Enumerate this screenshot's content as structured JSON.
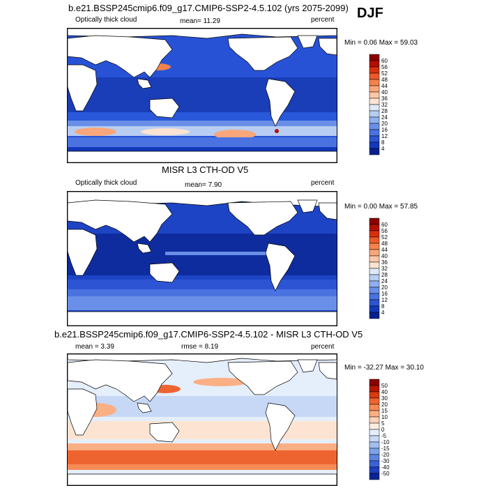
{
  "season": "DJF",
  "panels": [
    {
      "id": "model",
      "title": "b.e21.BSSP245cmip6.f09_g17.CMIP6-SSP2-4.5.102 (yrs 2075-2099)",
      "left_label": "Optically thick cloud",
      "center_label": "mean=  11.29",
      "right_label": "percent",
      "minmax": "Min =   0.06 Max =  59.03",
      "colorbar": {
        "labels": [
          "60",
          "56",
          "52",
          "48",
          "44",
          "40",
          "36",
          "32",
          "28",
          "24",
          "20",
          "16",
          "12",
          "8",
          "4"
        ],
        "colors": [
          "#8b0000",
          "#b30f00",
          "#d7300f",
          "#ea5a2a",
          "#f5824b",
          "#f9a77a",
          "#fcc7a8",
          "#fde4d2",
          "#dde9f8",
          "#b7cdf2",
          "#8fb0ee",
          "#6a8fe8",
          "#4a72e0",
          "#2c54d3",
          "#1338b9",
          "#08208f"
        ]
      }
    },
    {
      "id": "obs",
      "title": "MISR L3 CTH-OD V5",
      "left_label": "Optically thick cloud",
      "center_label": "mean=   7.90",
      "right_label": "percent",
      "minmax": "Min =   0.00 Max =  57.85",
      "colorbar": {
        "labels": [
          "60",
          "56",
          "52",
          "48",
          "44",
          "40",
          "36",
          "32",
          "28",
          "24",
          "20",
          "16",
          "12",
          "8",
          "4"
        ],
        "colors": [
          "#8b0000",
          "#b30f00",
          "#d7300f",
          "#ea5a2a",
          "#f5824b",
          "#f9a77a",
          "#fcc7a8",
          "#fde4d2",
          "#dde9f8",
          "#b7cdf2",
          "#8fb0ee",
          "#6a8fe8",
          "#4a72e0",
          "#2c54d3",
          "#1338b9",
          "#08208f"
        ]
      }
    },
    {
      "id": "diff",
      "title": "b.e21.BSSP245cmip6.f09_g17.CMIP6-SSP2-4.5.102 - MISR L3 CTH-OD V5",
      "left_label": "mean =   3.39",
      "center_label": "rmse =   8.19",
      "right_label": "percent",
      "minmax": "Min = -32.27 Max =  30.10",
      "colorbar": {
        "labels": [
          "50",
          "40",
          "30",
          "20",
          "15",
          "10",
          "5",
          "0",
          "-5",
          "-10",
          "-15",
          "-20",
          "-30",
          "-40",
          "-50"
        ],
        "colors": [
          "#8b0000",
          "#b71500",
          "#d93a12",
          "#ee6430",
          "#f78a55",
          "#fbaf84",
          "#fdd2b6",
          "#fdeee2",
          "#e5eefb",
          "#c6d8f5",
          "#a2bff0",
          "#7ea3ea",
          "#5c85e2",
          "#3b62d6",
          "#1d3fc0",
          "#0a2495"
        ]
      }
    }
  ]
}
